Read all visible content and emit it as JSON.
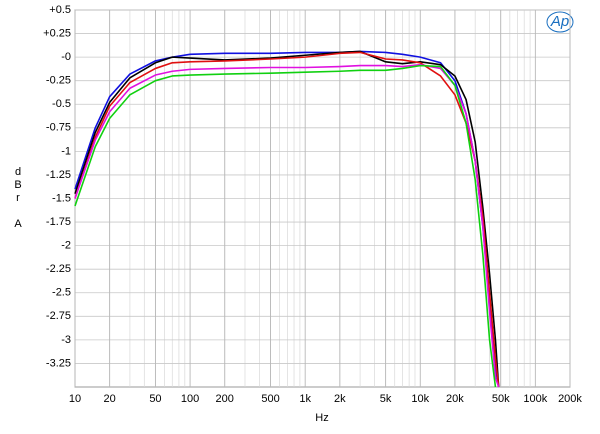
{
  "chart_data": {
    "type": "line",
    "xlabel": "Hz",
    "ylabel": "dBr A",
    "annotation": "Ap",
    "log_x": true,
    "grid": true,
    "xlim": [
      10,
      200000
    ],
    "xticks": [
      10,
      20,
      50,
      100,
      200,
      500,
      {
        "value": 1000,
        "label": "1k"
      },
      {
        "value": 2000,
        "label": "2k"
      },
      {
        "value": 5000,
        "label": "5k"
      },
      {
        "value": 10000,
        "label": "10k"
      },
      {
        "value": 20000,
        "label": "20k"
      },
      {
        "value": 50000,
        "label": "50k"
      },
      {
        "value": 100000,
        "label": "100k"
      },
      {
        "value": 200000,
        "label": "200k"
      }
    ],
    "ylim": [
      -3.5,
      0.5
    ],
    "yticks": [
      {
        "value": 0.5,
        "label": "+0.5"
      },
      {
        "value": 0.25,
        "label": "+0.25"
      },
      {
        "value": 0,
        "label": "-0"
      },
      -0.25,
      -0.5,
      -0.75,
      -1,
      -1.25,
      -1.5,
      -1.75,
      -2,
      -2.25,
      -2.5,
      -2.75,
      -3,
      -3.25
    ],
    "x": [
      10,
      15,
      20,
      30,
      50,
      70,
      100,
      200,
      500,
      1000,
      2000,
      3000,
      5000,
      7000,
      10000,
      15000,
      20000,
      25000,
      30000,
      35000,
      40000,
      45000,
      48000
    ],
    "series": [
      {
        "name": "Blue",
        "color": "#1010e0",
        "values": [
          -1.4,
          -0.75,
          -0.42,
          -0.18,
          -0.04,
          0.0,
          0.03,
          0.04,
          0.04,
          0.05,
          0.05,
          0.06,
          0.05,
          0.03,
          0.0,
          -0.06,
          -0.25,
          -0.6,
          -1.1,
          -1.8,
          -2.6,
          -3.3,
          -3.5
        ]
      },
      {
        "name": "Black",
        "color": "#000000",
        "values": [
          -1.45,
          -0.8,
          -0.48,
          -0.22,
          -0.06,
          0.0,
          -0.01,
          -0.03,
          -0.01,
          0.02,
          0.05,
          0.06,
          -0.05,
          -0.07,
          -0.05,
          -0.08,
          -0.2,
          -0.45,
          -0.9,
          -1.6,
          -2.3,
          -3.0,
          -3.5
        ]
      },
      {
        "name": "Red",
        "color": "#e01010",
        "values": [
          -1.5,
          -0.85,
          -0.52,
          -0.27,
          -0.12,
          -0.06,
          -0.05,
          -0.04,
          -0.02,
          0.0,
          0.04,
          0.05,
          -0.02,
          -0.03,
          -0.06,
          -0.2,
          -0.4,
          -0.7,
          -1.1,
          -1.7,
          -2.5,
          -3.2,
          -3.5
        ]
      },
      {
        "name": "Magenta",
        "color": "#e010e0",
        "values": [
          -1.5,
          -0.88,
          -0.58,
          -0.33,
          -0.19,
          -0.15,
          -0.13,
          -0.12,
          -0.11,
          -0.11,
          -0.1,
          -0.09,
          -0.09,
          -0.1,
          -0.08,
          -0.12,
          -0.3,
          -0.6,
          -1.1,
          -1.8,
          -2.7,
          -3.4,
          -3.5
        ]
      },
      {
        "name": "Green",
        "color": "#10d010",
        "values": [
          -1.58,
          -0.95,
          -0.65,
          -0.4,
          -0.25,
          -0.2,
          -0.19,
          -0.18,
          -0.17,
          -0.16,
          -0.15,
          -0.14,
          -0.14,
          -0.12,
          -0.09,
          -0.1,
          -0.3,
          -0.7,
          -1.3,
          -2.1,
          -3.0,
          -3.5,
          null
        ]
      }
    ]
  }
}
